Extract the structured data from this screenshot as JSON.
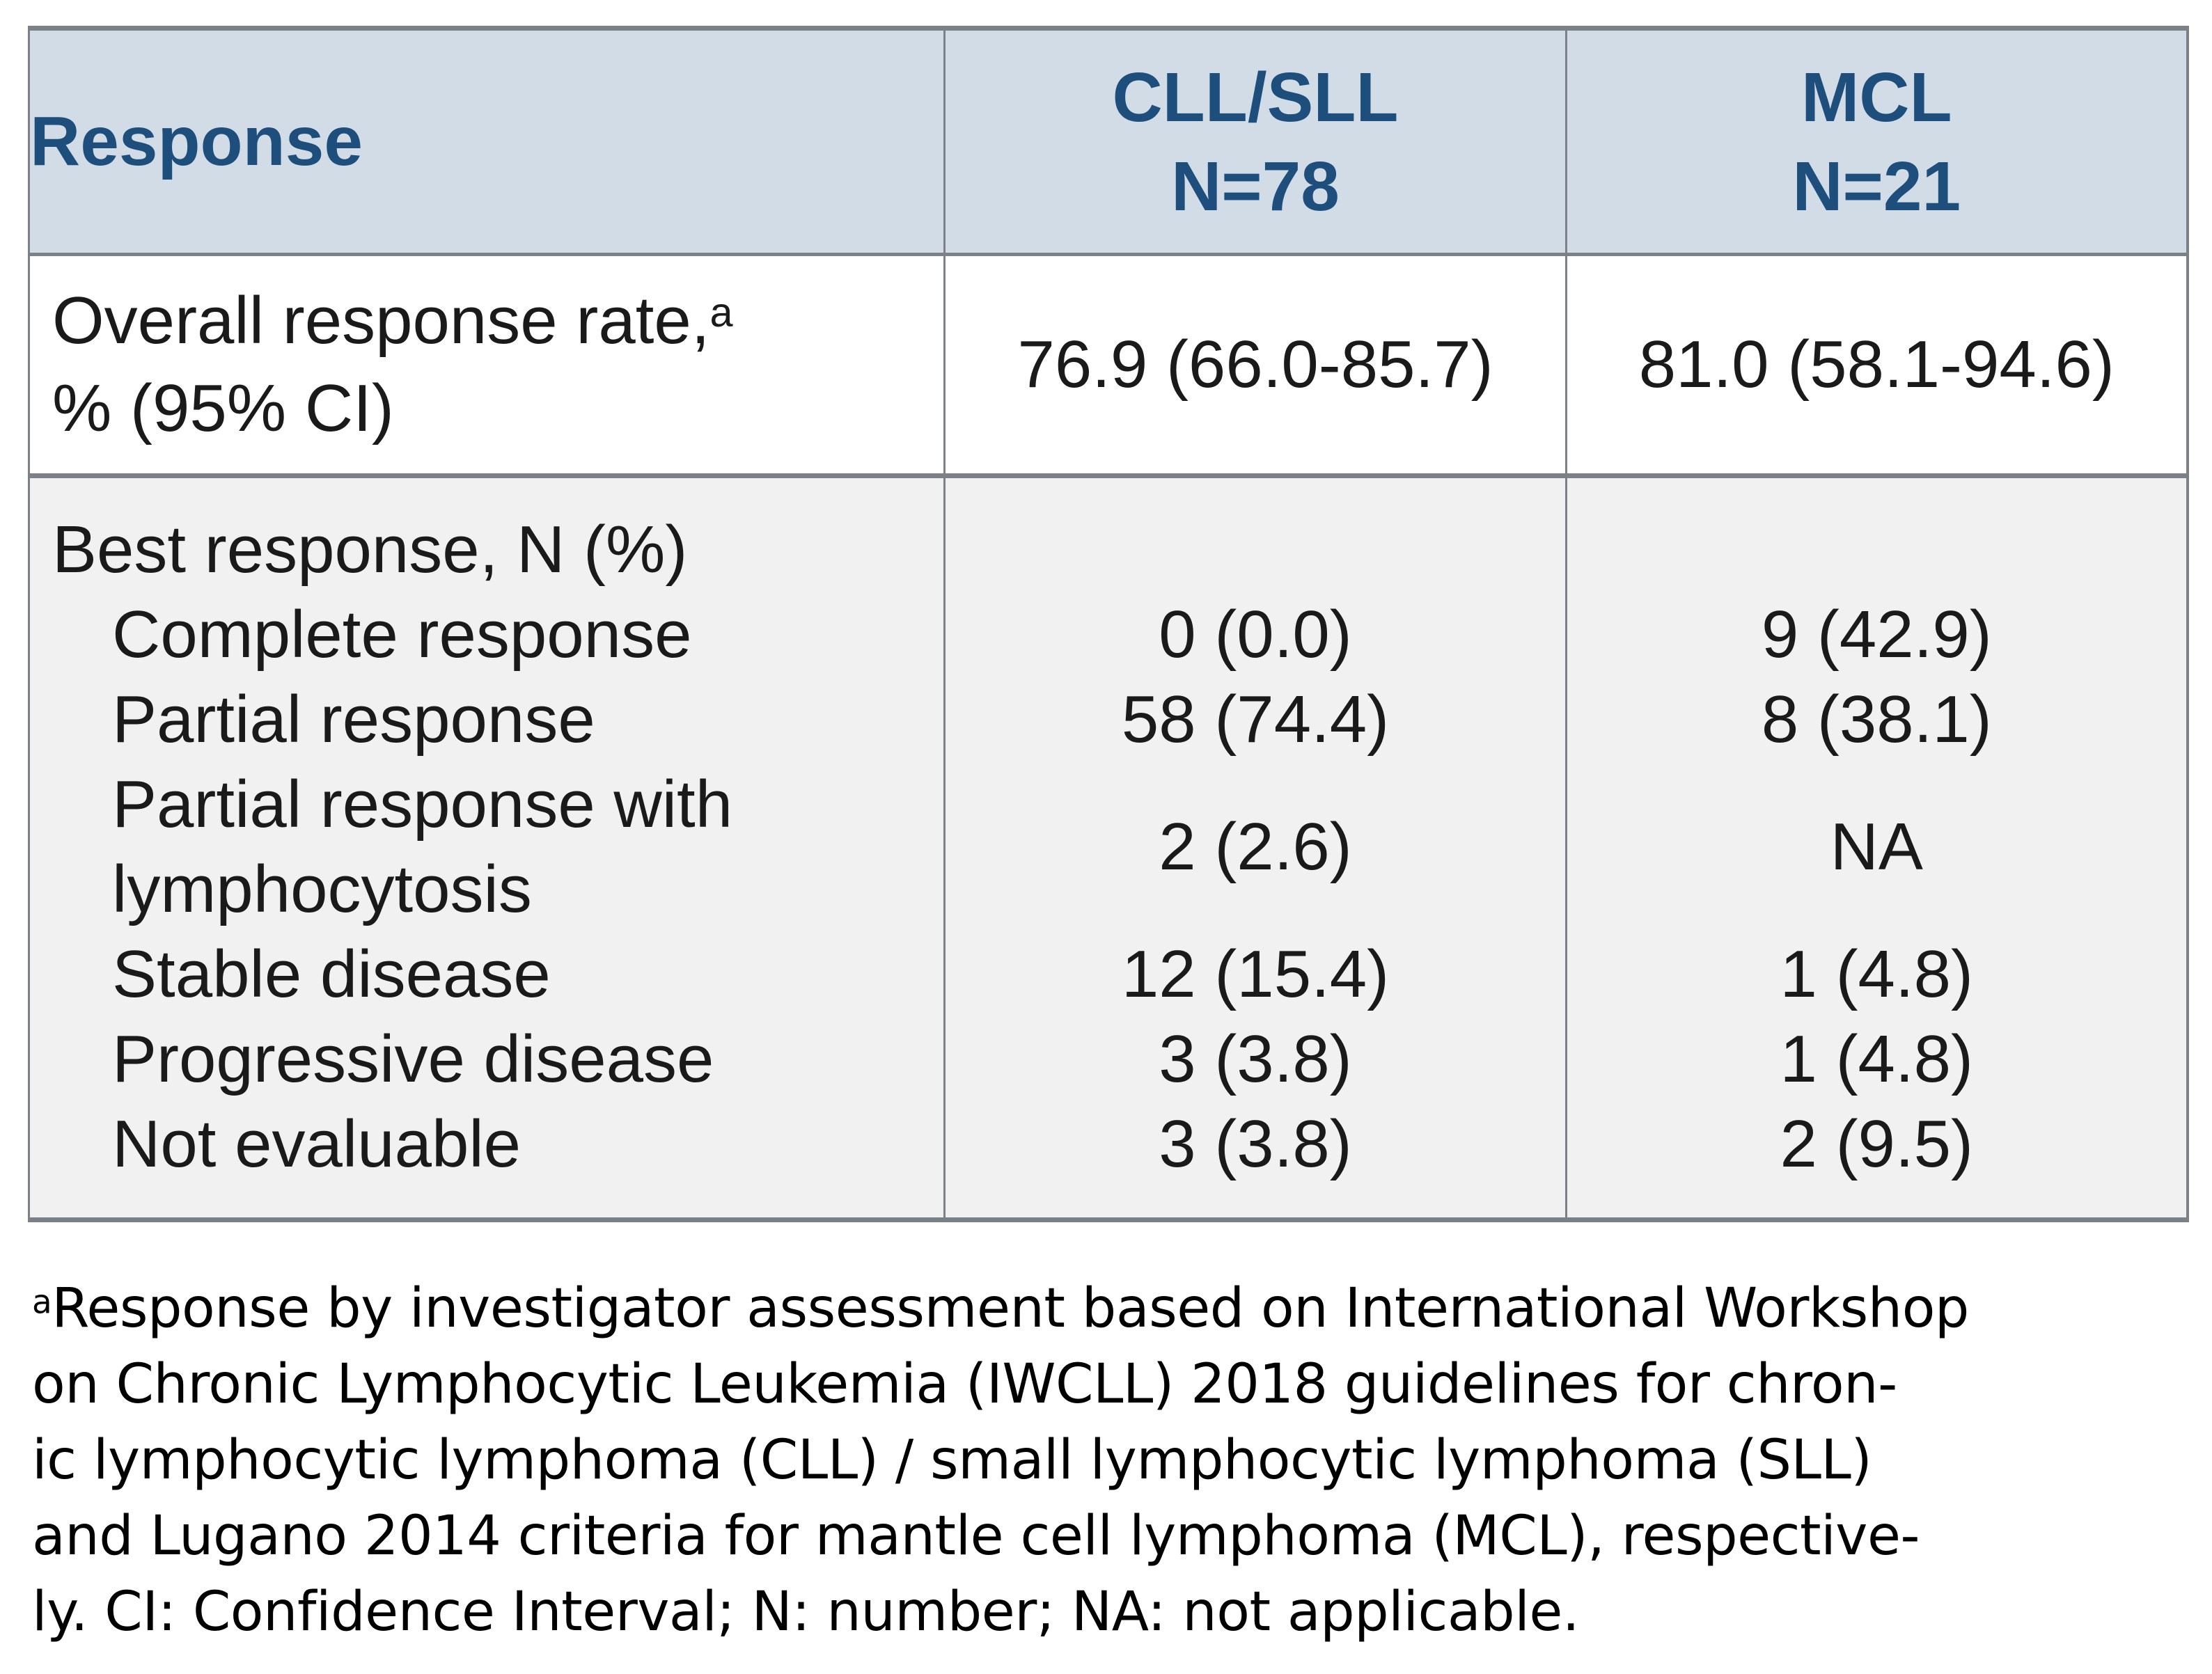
{
  "colors": {
    "header_bg": "#d2dce6",
    "header_text": "#1d4e7c",
    "section_bg": "#f1f1f2",
    "border_color": "#7c8187",
    "body_text": "#1a1a1a"
  },
  "table": {
    "header": {
      "response_label": "Response",
      "cll_line1": "CLL/SLL",
      "cll_line2": "N=78",
      "mcl_line1": "MCL",
      "mcl_line2": "N=21"
    },
    "orr": {
      "label_line1": "Overall response rate,",
      "label_sup": "a",
      "label_line2": "% (95% CI)",
      "cll": "76.9 (66.0-85.7)",
      "mcl": "81.0 (58.1-94.6)"
    },
    "best": {
      "header_label": "Best response, N (%)",
      "rows": [
        {
          "label": "Complete response",
          "cll": "0 (0.0)",
          "mcl": "9 (42.9)"
        },
        {
          "label": "Partial response",
          "cll": "58 (74.4)",
          "mcl": "8 (38.1)"
        },
        {
          "label": "Partial response with lymphocytosis",
          "label_line1": "Partial response with",
          "label_line2": "lymphocytosis",
          "cll": "2 (2.6)",
          "mcl": "NA"
        },
        {
          "label": "Stable disease",
          "cll": "12 (15.4)",
          "mcl": "1 (4.8)"
        },
        {
          "label": "Progressive disease",
          "cll": "3 (3.8)",
          "mcl": "1 (4.8)"
        },
        {
          "label": "Not evaluable",
          "cll": "3 (3.8)",
          "mcl": "2 (9.5)"
        }
      ]
    }
  },
  "footnote": {
    "marker": "a",
    "lines": [
      "Response by investigator assessment based on International Workshop",
      "on Chronic Lymphocytic Leukemia (IWCLL) 2018 guidelines for chron-",
      "ic lymphocytic lymphoma (CLL) / small lymphocytic lymphoma (SLL)",
      "and Lugano 2014 criteria for mantle cell lymphoma (MCL), respective-",
      "ly. CI: Confidence Interval; N: number; NA: not applicable."
    ]
  }
}
